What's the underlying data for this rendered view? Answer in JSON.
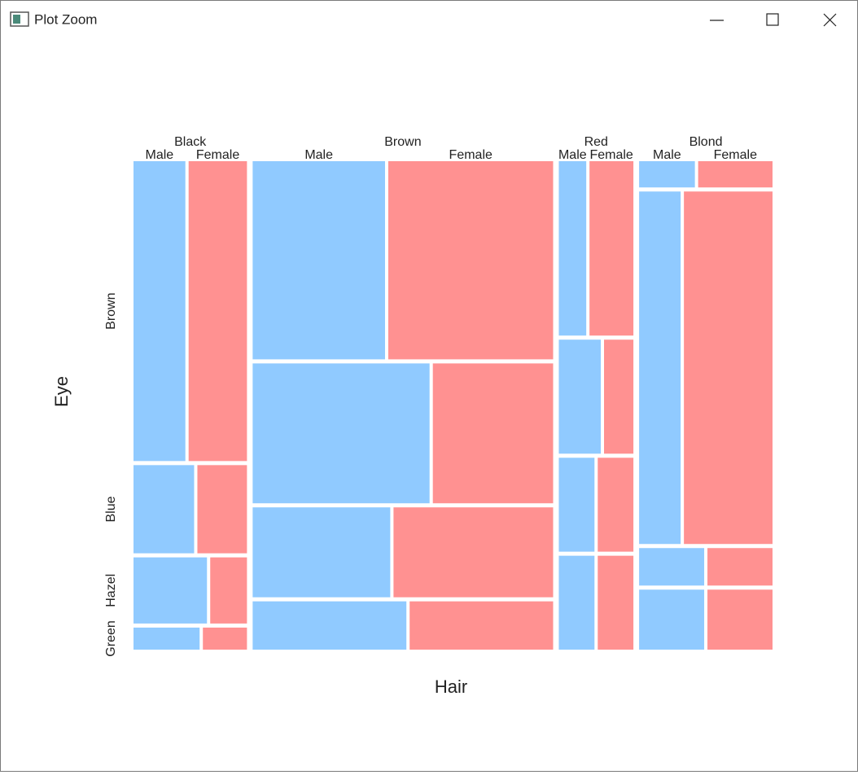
{
  "window": {
    "title": "Plot Zoom"
  },
  "chart_data": {
    "type": "mosaic",
    "x_label": "Hair",
    "y_label": "Eye",
    "x_categories": [
      "Black",
      "Brown",
      "Red",
      "Blond"
    ],
    "y_categories": [
      "Brown",
      "Blue",
      "Hazel",
      "Green"
    ],
    "series": [
      {
        "name": "Male",
        "color": "#90caff",
        "values": [
          [
            32,
            11,
            10,
            3
          ],
          [
            53,
            50,
            25,
            15
          ],
          [
            10,
            10,
            7,
            7
          ],
          [
            3,
            30,
            5,
            8
          ]
        ]
      },
      {
        "name": "Female",
        "color": "#ff9191",
        "values": [
          [
            36,
            9,
            5,
            2
          ],
          [
            66,
            34,
            29,
            14
          ],
          [
            16,
            7,
            7,
            7
          ],
          [
            4,
            64,
            5,
            8
          ]
        ]
      }
    ]
  }
}
